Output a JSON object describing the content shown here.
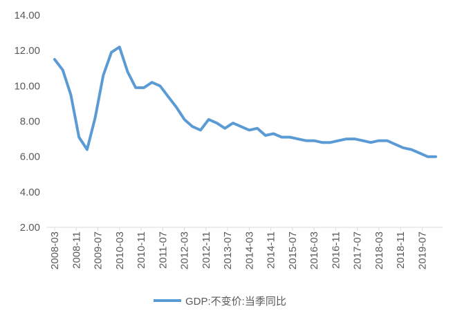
{
  "chart_data": {
    "type": "line",
    "title": "",
    "xlabel": "",
    "ylabel": "",
    "ylim": [
      2,
      14
    ],
    "y_ticks": [
      "2.00",
      "4.00",
      "6.00",
      "8.00",
      "10.00",
      "12.00",
      "14.00"
    ],
    "x_tick_labels": [
      "2008-03",
      "2008-11",
      "2009-07",
      "2010-03",
      "2010-11",
      "2011-07",
      "2012-03",
      "2012-11",
      "2013-07",
      "2014-03",
      "2014-11",
      "2015-07",
      "2016-03",
      "2016-11",
      "2017-07",
      "2018-03",
      "2018-11",
      "2019-07"
    ],
    "grid": false,
    "legend_position": "bottom",
    "series": [
      {
        "name": "GDP:不变价:当季同比",
        "color": "#5B9BD5",
        "x": [
          "2008-03",
          "2008-06",
          "2008-09",
          "2008-12",
          "2009-03",
          "2009-06",
          "2009-09",
          "2009-12",
          "2010-03",
          "2010-06",
          "2010-09",
          "2010-12",
          "2011-03",
          "2011-06",
          "2011-09",
          "2011-12",
          "2012-03",
          "2012-06",
          "2012-09",
          "2012-12",
          "2013-03",
          "2013-06",
          "2013-09",
          "2013-12",
          "2014-03",
          "2014-06",
          "2014-09",
          "2014-12",
          "2015-03",
          "2015-06",
          "2015-09",
          "2015-12",
          "2016-03",
          "2016-06",
          "2016-09",
          "2016-12",
          "2017-03",
          "2017-06",
          "2017-09",
          "2017-12",
          "2018-03",
          "2018-06",
          "2018-09",
          "2018-12",
          "2019-03",
          "2019-06",
          "2019-09",
          "2019-12"
        ],
        "values": [
          11.5,
          10.9,
          9.5,
          7.1,
          6.4,
          8.2,
          10.6,
          11.9,
          12.2,
          10.8,
          9.9,
          9.9,
          10.2,
          10.0,
          9.4,
          8.8,
          8.1,
          7.7,
          7.5,
          8.1,
          7.9,
          7.6,
          7.9,
          7.7,
          7.5,
          7.6,
          7.2,
          7.3,
          7.1,
          7.1,
          7.0,
          6.9,
          6.9,
          6.8,
          6.8,
          6.9,
          7.0,
          7.0,
          6.9,
          6.8,
          6.9,
          6.9,
          6.7,
          6.5,
          6.4,
          6.2,
          6.0,
          6.0
        ]
      }
    ]
  }
}
